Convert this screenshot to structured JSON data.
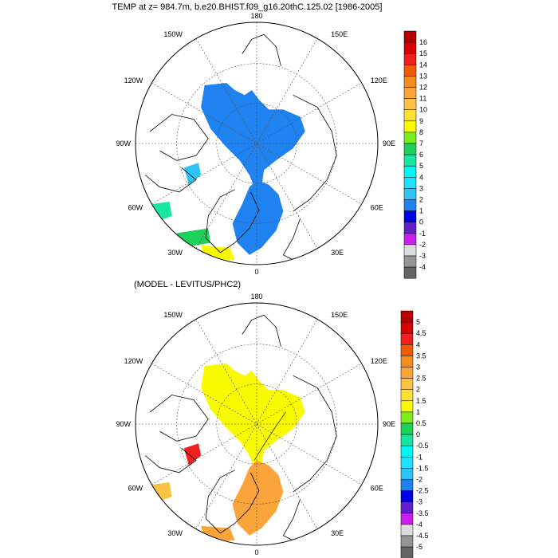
{
  "panels": [
    {
      "title": "TEMP at z= 984.7m, b.e20.BHIST.f09_g16.20thC.125.02 [1986-2005]",
      "lon_labels": {
        "top": "180",
        "l150": "150W",
        "r150": "150E",
        "l120": "120W",
        "r120": "120E",
        "l90": "90W",
        "r90": "90E",
        "l60": "60W",
        "r60": "60E",
        "l30": "30W",
        "r30": "30E",
        "bottom": "0"
      },
      "colorbar": {
        "labels": [
          "16",
          "15",
          "14",
          "13",
          "12",
          "11",
          "10",
          "9",
          "8",
          "7",
          "6",
          "5",
          "4",
          "3",
          "2",
          "1",
          "0",
          "-1",
          "-2",
          "-3",
          "-4"
        ],
        "colors": [
          "#b40000",
          "#d80000",
          "#f01e1e",
          "#f05a00",
          "#f58c1e",
          "#fba43a",
          "#fcc244",
          "#fde132",
          "#f8fa00",
          "#7ced1c",
          "#1cd25a",
          "#16e6a2",
          "#00f5f5",
          "#1ee1ff",
          "#2cc4f7",
          "#1e82f0",
          "#0000e6",
          "#6420c8",
          "#c81ef0",
          "#dcdcdc",
          "#969696",
          "#646464"
        ]
      },
      "regions": [
        {
          "name": "basin-region",
          "color": "#1e82f0"
        },
        {
          "name": "baffin-region",
          "color": "#2cc4f7"
        },
        {
          "name": "labrador-region",
          "color": "#16e6a2"
        },
        {
          "name": "greenland-sea-region",
          "color": "#1cd25a"
        },
        {
          "name": "atlantic-region",
          "color": "#f8fa00"
        }
      ]
    },
    {
      "title": "(MODEL - LEVITUS/PHC2)",
      "lon_labels": {
        "top": "180",
        "l150": "150W",
        "r150": "150E",
        "l120": "120W",
        "r120": "120E",
        "l90": "90W",
        "r90": "90E",
        "l60": "60W",
        "r60": "60E",
        "l30": "30W",
        "r30": "30E",
        "bottom": "0"
      },
      "colorbar": {
        "labels": [
          "5",
          "4.5",
          "4",
          "3.5",
          "3",
          "2.5",
          "2",
          "1.5",
          "1",
          "0.5",
          "0",
          "-0.5",
          "-1",
          "-1.5",
          "-2",
          "-2.5",
          "-3",
          "-3.5",
          "-4",
          "-4.5",
          "-5"
        ],
        "colors": [
          "#b40000",
          "#d80000",
          "#f01e1e",
          "#f05a00",
          "#f58c1e",
          "#fba43a",
          "#fcc244",
          "#fde132",
          "#f8fa00",
          "#7ced1c",
          "#1cd25a",
          "#16e6a2",
          "#00f5f5",
          "#1ee1ff",
          "#2cc4f7",
          "#1e82f0",
          "#0000e6",
          "#6420c8",
          "#c81ef0",
          "#dcdcdc",
          "#969696",
          "#646464"
        ]
      },
      "regions": [
        {
          "name": "basin-region",
          "color": "#f8fa00"
        },
        {
          "name": "nordic-region",
          "color": "#fba43a"
        },
        {
          "name": "baffin-region",
          "color": "#f01e1e"
        },
        {
          "name": "labrador-region",
          "color": "#fcc244"
        },
        {
          "name": "atlantic-region",
          "color": "#fba43a"
        }
      ]
    }
  ]
}
